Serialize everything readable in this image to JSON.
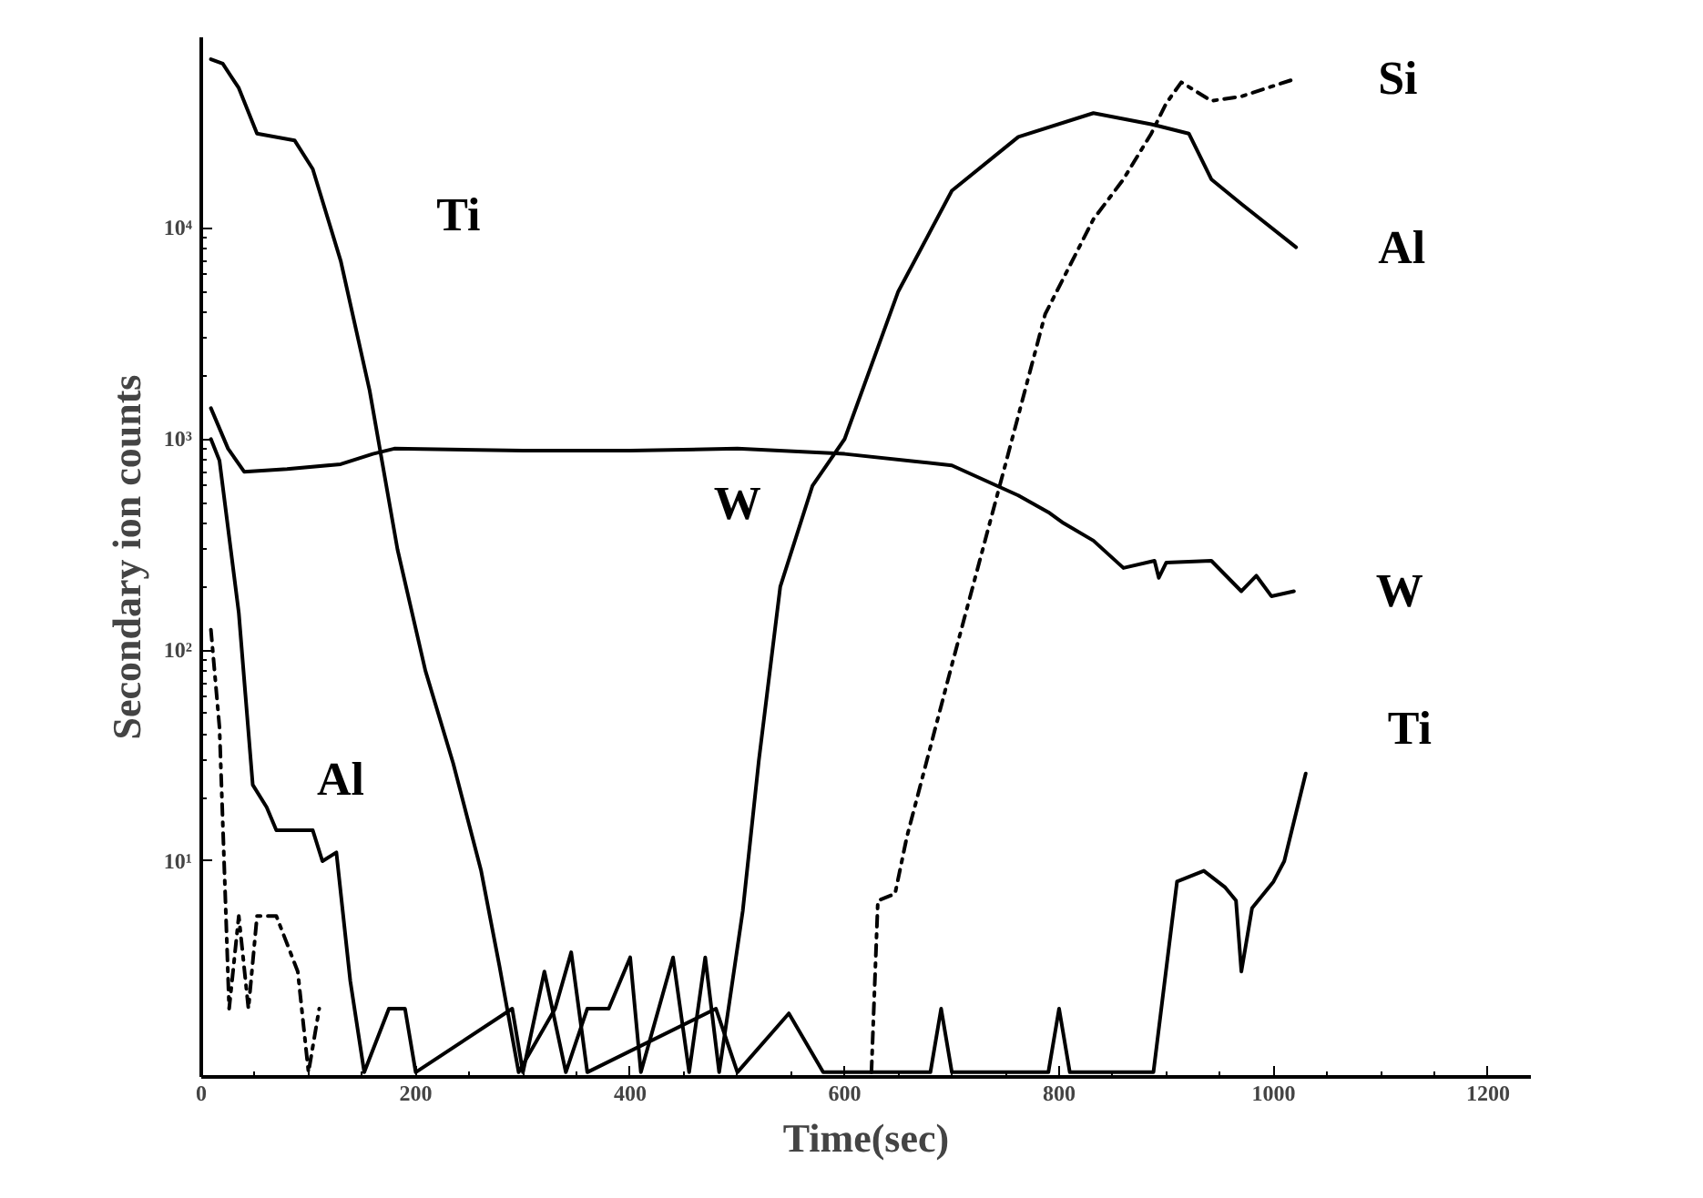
{
  "chart_data": {
    "type": "line",
    "xlabel": "Time(sec)",
    "ylabel": "Secondary ion counts",
    "log": "y",
    "grid": false,
    "marker": "none",
    "xlim": [
      0,
      1240
    ],
    "xticks": [
      0,
      200,
      400,
      600,
      800,
      1000,
      1200
    ],
    "ylim": [
      0.95,
      80000
    ],
    "yticks": [
      {
        "value": 10,
        "label": "10¹"
      },
      {
        "value": 100,
        "label": "10²"
      },
      {
        "value": 1000,
        "label": "10³"
      },
      {
        "value": 10000,
        "label": "10⁴"
      }
    ],
    "series": [
      {
        "name": "Ti",
        "color": "#000000",
        "line_style": "solid",
        "x": [
          9,
          20,
          35,
          52,
          87,
          104,
          130,
          157,
          183,
          209,
          235,
          261,
          278,
          296,
          330,
          345,
          360,
          480,
          500,
          548,
          580,
          680,
          690,
          700,
          790,
          800,
          810,
          888,
          910,
          935,
          955,
          965,
          970,
          980,
          1000,
          1010,
          1030
        ],
        "values": [
          63000,
          60000,
          46000,
          28000,
          26000,
          19000,
          7000,
          1700,
          300,
          80,
          29,
          9,
          3.2,
          1,
          2,
          3.7,
          1,
          2,
          1,
          1.9,
          1,
          1,
          2,
          1,
          1,
          2,
          1,
          1,
          8,
          9,
          7.5,
          6.5,
          3,
          6,
          8,
          10,
          26
        ]
      },
      {
        "name": "W",
        "color": "#000000",
        "line_style": "solid",
        "x": [
          9,
          25,
          40,
          80,
          130,
          160,
          180,
          300,
          400,
          500,
          600,
          700,
          762,
          790,
          804,
          832,
          860,
          889,
          893,
          900,
          942,
          970,
          984,
          998,
          1019
        ],
        "values": [
          1400,
          900,
          700,
          720,
          760,
          850,
          900,
          880,
          880,
          900,
          850,
          750,
          540,
          450,
          400,
          330,
          245,
          265,
          220,
          260,
          265,
          190,
          225,
          180,
          190
        ]
      },
      {
        "name": "Al",
        "color": "#000000",
        "line_style": "solid",
        "x": [
          9,
          17,
          35,
          48,
          61,
          70,
          104,
          113,
          126,
          139,
          152,
          175,
          190,
          200,
          290,
          300,
          320,
          340,
          360,
          380,
          400,
          410,
          440,
          455,
          470,
          483,
          505,
          520,
          540,
          570,
          600,
          650,
          700,
          762,
          832,
          886,
          921,
          942,
          970,
          1021
        ],
        "values": [
          1000,
          790,
          150,
          23,
          18,
          14,
          14,
          10,
          11,
          2.7,
          1,
          2,
          2,
          1,
          2,
          1,
          3,
          1,
          2,
          2,
          3.5,
          1,
          3.5,
          1,
          3.5,
          1,
          5.8,
          30,
          200,
          600,
          1000,
          5000,
          15000,
          27000,
          35000,
          31000,
          28000,
          17000,
          13000,
          8100
        ]
      },
      {
        "name": "Si",
        "color": "#000000",
        "line_style": "dashed",
        "x": [
          9,
          17,
          26,
          35,
          44,
          52,
          70,
          90,
          100,
          110,
          300,
          625,
          631,
          647,
          658,
          700,
          750,
          787,
          832,
          860,
          886,
          900,
          914,
          942,
          970,
          1021
        ],
        "values": [
          125,
          43,
          2,
          5.5,
          2,
          5.5,
          5.5,
          3,
          1,
          2,
          null,
          1,
          6.5,
          7,
          13,
          85,
          760,
          3900,
          11000,
          17000,
          28000,
          39000,
          49000,
          40000,
          42000,
          51000
        ]
      }
    ]
  }
}
